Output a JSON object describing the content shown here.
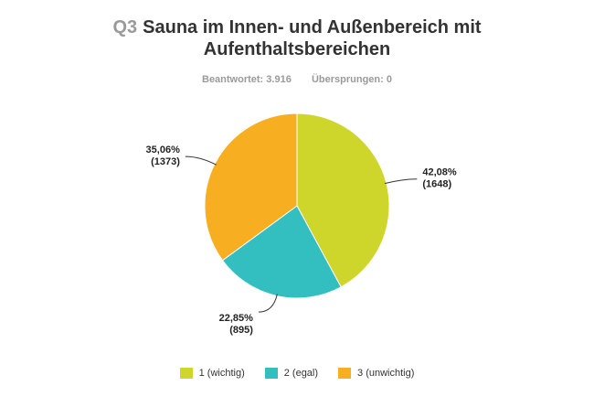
{
  "question": {
    "number": "Q3",
    "title": "Sauna im Innen- und Außenbereich mit Aufenthaltsbereichen"
  },
  "meta": {
    "answered_label": "Beantwortet:",
    "answered_value": "3.916",
    "skipped_label": "Übersprungen:",
    "skipped_value": "0"
  },
  "chart_data": {
    "type": "pie",
    "categories": [
      "1 (wichtig)",
      "2 (egal)",
      "3 (unwichtig)"
    ],
    "values": [
      1648,
      895,
      1373
    ],
    "percent_labels": [
      "42,08%",
      "22,85%",
      "35,06%"
    ],
    "count_labels": [
      "(1648)",
      "(895)",
      "(1373)"
    ],
    "colors": [
      "#cfd62b",
      "#33bfbf",
      "#f7ae21"
    ],
    "start_angle_deg": 0,
    "direction": "clockwise",
    "legend_position": "bottom"
  }
}
